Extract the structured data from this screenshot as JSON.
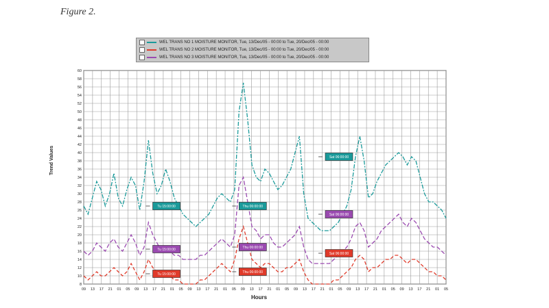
{
  "figure_caption": "Figure 2.",
  "legend": [
    {
      "text": "WEL TRANS NO 1 MOISTURE MONITOR, Tue, 13/Dec/05 - 00:00 to Tue, 20/Dec/05 - 00:00",
      "color": "#1a9a9a"
    },
    {
      "text": "WEL TRANS NO 2 MOISTURE MONITOR, Tue, 13/Dec/05 - 00:00 to Tue, 20/Dec/05 - 00:00",
      "color": "#e03a2a"
    },
    {
      "text": "WEL TRANS NO 3 MOISTURE MONITOR, Tue, 13/Dec/05 - 00:00 to Tue, 20/Dec/05 - 00:00",
      "color": "#9a4ab0"
    }
  ],
  "chart_data": {
    "type": "line",
    "xlabel": "Hours",
    "ylabel": "Trend Values",
    "ylim": [
      8,
      60
    ],
    "yticks": [
      8,
      10,
      12,
      14,
      16,
      18,
      20,
      22,
      24,
      26,
      28,
      30,
      32,
      34,
      36,
      38,
      40,
      42,
      44,
      46,
      48,
      50,
      52,
      54,
      56,
      58,
      60
    ],
    "x": [
      0,
      2,
      4,
      6,
      8,
      10,
      12,
      14,
      16,
      18,
      20,
      22,
      24,
      26,
      28,
      30,
      32,
      34,
      36,
      38,
      40,
      42,
      44,
      46,
      48,
      50,
      52,
      54,
      56,
      58,
      60,
      62,
      64,
      66,
      68,
      70,
      72,
      74,
      76,
      78,
      80,
      82,
      84,
      86,
      88,
      90,
      92,
      94,
      96,
      98,
      100,
      102,
      104,
      106,
      108,
      110,
      112,
      114,
      116,
      118,
      120,
      122,
      124,
      126,
      128,
      130,
      132,
      134,
      136,
      138,
      140,
      142,
      144,
      146,
      148,
      150,
      152,
      154,
      156,
      158,
      160,
      162,
      164,
      166,
      168
    ],
    "xtick_labels": [
      "09",
      "13",
      "17",
      "21",
      "01",
      "05",
      "09",
      "13",
      "17",
      "21",
      "01",
      "05",
      "09",
      "13",
      "17",
      "21",
      "01",
      "05",
      "09",
      "13",
      "17",
      "21",
      "01",
      "05",
      "09",
      "13",
      "17",
      "21",
      "01",
      "05",
      "09",
      "13",
      "17",
      "21",
      "01",
      "05",
      "09",
      "13",
      "17",
      "21",
      "01",
      "05"
    ],
    "grid": true,
    "series": [
      {
        "color": "#1a9a9a",
        "dash": "6,2,2,2",
        "values": [
          27,
          25,
          29,
          33,
          31,
          27,
          30,
          35,
          29,
          27,
          31,
          34,
          32,
          26,
          33,
          43,
          35,
          30,
          32,
          36,
          33,
          29,
          27,
          25,
          24,
          23,
          22,
          23,
          24,
          25,
          27,
          29,
          30,
          29,
          28,
          31,
          50,
          57,
          48,
          37,
          34,
          33,
          36,
          35,
          33,
          31,
          32,
          34,
          36,
          40,
          44,
          30,
          24,
          23,
          22,
          21,
          21,
          21,
          22,
          23,
          25,
          27,
          31,
          39,
          44,
          38,
          29,
          30,
          33,
          35,
          37,
          38,
          39,
          40,
          39,
          37,
          39,
          38,
          34,
          30,
          28,
          28,
          27,
          26,
          24
        ]
      },
      {
        "color": "#9a4ab0",
        "dash": "6,3",
        "values": [
          16,
          15,
          16,
          18,
          17,
          16,
          18,
          19,
          17,
          16,
          18,
          20,
          18,
          15,
          17,
          23,
          20,
          18,
          16,
          17,
          16,
          15,
          15,
          14,
          14,
          14,
          14,
          15,
          15,
          16,
          17,
          18,
          19,
          18,
          17,
          20,
          32,
          34,
          28,
          22,
          21,
          19,
          20,
          20,
          18,
          17,
          17,
          18,
          19,
          20,
          22,
          17,
          14,
          13,
          13,
          13,
          13,
          13,
          14,
          15,
          16,
          17,
          19,
          22,
          23,
          21,
          17,
          18,
          19,
          21,
          22,
          23,
          24,
          25,
          23,
          22,
          24,
          23,
          21,
          19,
          18,
          17,
          17,
          16,
          15
        ]
      },
      {
        "color": "#e03a2a",
        "dash": "5,3",
        "values": [
          10,
          9,
          10,
          11,
          10,
          10,
          11,
          12,
          11,
          10,
          11,
          13,
          11,
          9,
          11,
          14,
          12,
          11,
          10,
          11,
          10,
          9,
          9,
          8,
          8,
          8,
          8,
          9,
          9,
          10,
          11,
          12,
          13,
          12,
          11,
          14,
          19,
          22,
          18,
          14,
          13,
          12,
          13,
          13,
          12,
          11,
          11,
          12,
          12,
          13,
          14,
          11,
          9,
          8,
          8,
          8,
          8,
          8,
          9,
          9,
          10,
          11,
          12,
          14,
          15,
          14,
          11,
          12,
          12,
          13,
          14,
          14,
          15,
          15,
          14,
          13,
          14,
          14,
          13,
          12,
          11,
          11,
          10,
          10,
          9
        ]
      }
    ],
    "annotations": [
      {
        "x": 32,
        "y": 27,
        "color": "#1a9a9a",
        "text": "Tu 15:00:00"
      },
      {
        "x": 32,
        "y": 16.5,
        "color": "#9a4ab0",
        "text": "Tu 15:00:00"
      },
      {
        "x": 32,
        "y": 10.5,
        "color": "#e03a2a",
        "text": "Tu 15:00:00"
      },
      {
        "x": 72,
        "y": 27,
        "color": "#1a9a9a",
        "text": "Thu 06:00:00"
      },
      {
        "x": 72,
        "y": 17,
        "color": "#9a4ab0",
        "text": "Thu 06:00:00"
      },
      {
        "x": 72,
        "y": 11,
        "color": "#e03a2a",
        "text": "Thu 06:00:00"
      },
      {
        "x": 112,
        "y": 39,
        "color": "#1a9a9a",
        "text": "Sat 06:00:00"
      },
      {
        "x": 112,
        "y": 25,
        "color": "#9a4ab0",
        "text": "Sat 06:00:00"
      },
      {
        "x": 112,
        "y": 15.5,
        "color": "#e03a2a",
        "text": "Sat 06:00:00"
      }
    ]
  }
}
